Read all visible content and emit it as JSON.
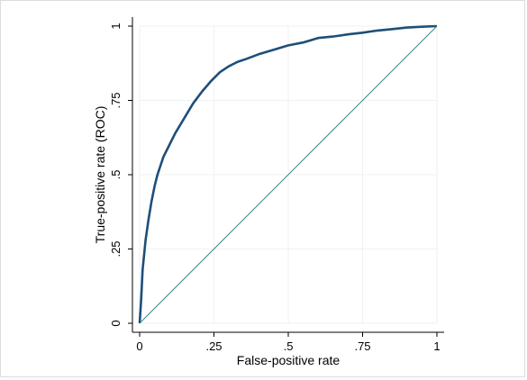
{
  "chart_data": {
    "type": "line",
    "title": "",
    "xlabel": "False-positive rate",
    "ylabel": "True-positive rate (ROC)",
    "xlim": [
      0,
      1
    ],
    "ylim": [
      0,
      1
    ],
    "x_ticks": [
      0,
      0.25,
      0.5,
      0.75,
      1
    ],
    "x_tick_labels": [
      "0",
      ".25",
      ".5",
      ".75",
      "1"
    ],
    "y_ticks": [
      0,
      0.25,
      0.5,
      0.75,
      1
    ],
    "y_tick_labels": [
      "0",
      ".25",
      ".5",
      ".75",
      "1"
    ],
    "grid": true,
    "legend": "none",
    "series": [
      {
        "color": "#1f4e79",
        "x": [
          0,
          0.005,
          0.01,
          0.02,
          0.03,
          0.04,
          0.05,
          0.06,
          0.07,
          0.08,
          0.1,
          0.12,
          0.15,
          0.18,
          0.21,
          0.24,
          0.27,
          0.3,
          0.33,
          0.36,
          0.4,
          0.45,
          0.5,
          0.55,
          0.6,
          0.65,
          0.7,
          0.75,
          0.8,
          0.85,
          0.9,
          0.95,
          1.0
        ],
        "y": [
          0,
          0.08,
          0.18,
          0.28,
          0.35,
          0.41,
          0.46,
          0.5,
          0.53,
          0.56,
          0.6,
          0.64,
          0.69,
          0.74,
          0.78,
          0.815,
          0.845,
          0.865,
          0.88,
          0.89,
          0.905,
          0.92,
          0.935,
          0.945,
          0.96,
          0.965,
          0.972,
          0.978,
          0.985,
          0.99,
          0.995,
          0.998,
          1.0
        ]
      },
      {
        "color": "#3d8a80",
        "x": [
          0,
          1
        ],
        "y": [
          0,
          1
        ]
      }
    ]
  }
}
